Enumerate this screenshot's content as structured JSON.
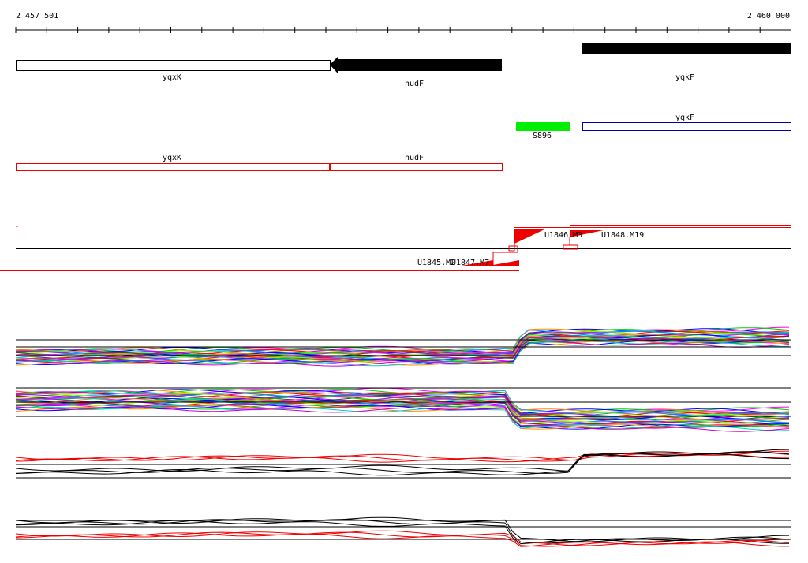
{
  "ruler": {
    "start": "2 457 501",
    "end": "2 460 000"
  },
  "genes": [
    {
      "label": "yqxK"
    },
    {
      "label": "nudF"
    },
    {
      "label": "yqkF"
    }
  ],
  "features": [
    {
      "label": "S896"
    },
    {
      "label": "yqkF"
    }
  ],
  "annotations": [
    {
      "label": "yqxK"
    },
    {
      "label": "nudF"
    }
  ],
  "probes": [
    "U1846.M3",
    "U1848.M19",
    "U1845.M2",
    "U1847.M7"
  ]
}
